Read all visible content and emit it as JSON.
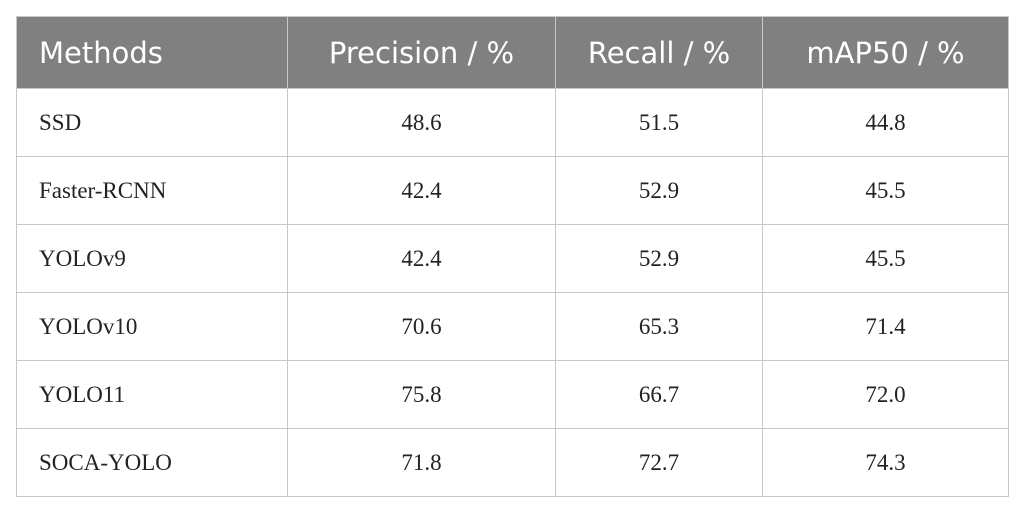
{
  "table": {
    "headers": [
      "Methods",
      "Precision / %",
      "Recall / %",
      "mAP50 / %"
    ],
    "rows": [
      [
        "SSD",
        "48.6",
        "51.5",
        "44.8"
      ],
      [
        "Faster-RCNN",
        "42.4",
        "52.9",
        "45.5"
      ],
      [
        "YOLOv9",
        "42.4",
        "52.9",
        "45.5"
      ],
      [
        "YOLOv10",
        "70.6",
        "65.3",
        "71.4"
      ],
      [
        "YOLO11",
        "75.8",
        "66.7",
        "72.0"
      ],
      [
        "SOCA-YOLO",
        "71.8",
        "72.7",
        "74.3"
      ]
    ]
  }
}
